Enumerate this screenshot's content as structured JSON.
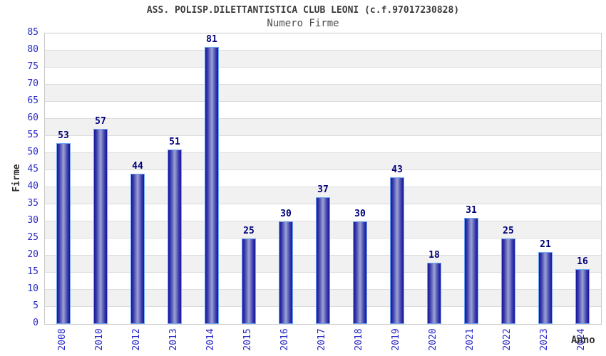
{
  "chart_data": {
    "type": "bar",
    "title": "ASS. POLISP.DILETTANTISTICA CLUB LEONI (c.f.97017230828)",
    "subtitle": "Numero Firme",
    "xlabel": "Anno",
    "ylabel": "Firme",
    "categories": [
      "2008",
      "2010",
      "2012",
      "2013",
      "2014",
      "2015",
      "2016",
      "2017",
      "2018",
      "2019",
      "2020",
      "2021",
      "2022",
      "2023",
      "2024"
    ],
    "values": [
      53,
      57,
      44,
      51,
      81,
      25,
      30,
      37,
      30,
      43,
      18,
      31,
      25,
      21,
      16
    ],
    "ylim": [
      0,
      85
    ],
    "ytick_step": 5,
    "grid": true,
    "banded_background": true,
    "legend_position": "none"
  },
  "colors": {
    "title": "#3c3c3c",
    "subtitle": "#4d4d4d",
    "axis_label": "#333333",
    "tick_label": "#2727c8",
    "value_label": "#00007a",
    "bar_border": "#6fa6f2",
    "bar_dark": "#15159c",
    "bar_mid": "#3c3caa",
    "bar_light": "#9ba3d6",
    "band_white": "#ffffff",
    "band_alt": "#f1f1f1",
    "grid_line": "#dcdcdc",
    "plot_border": "#c9c9c9"
  }
}
